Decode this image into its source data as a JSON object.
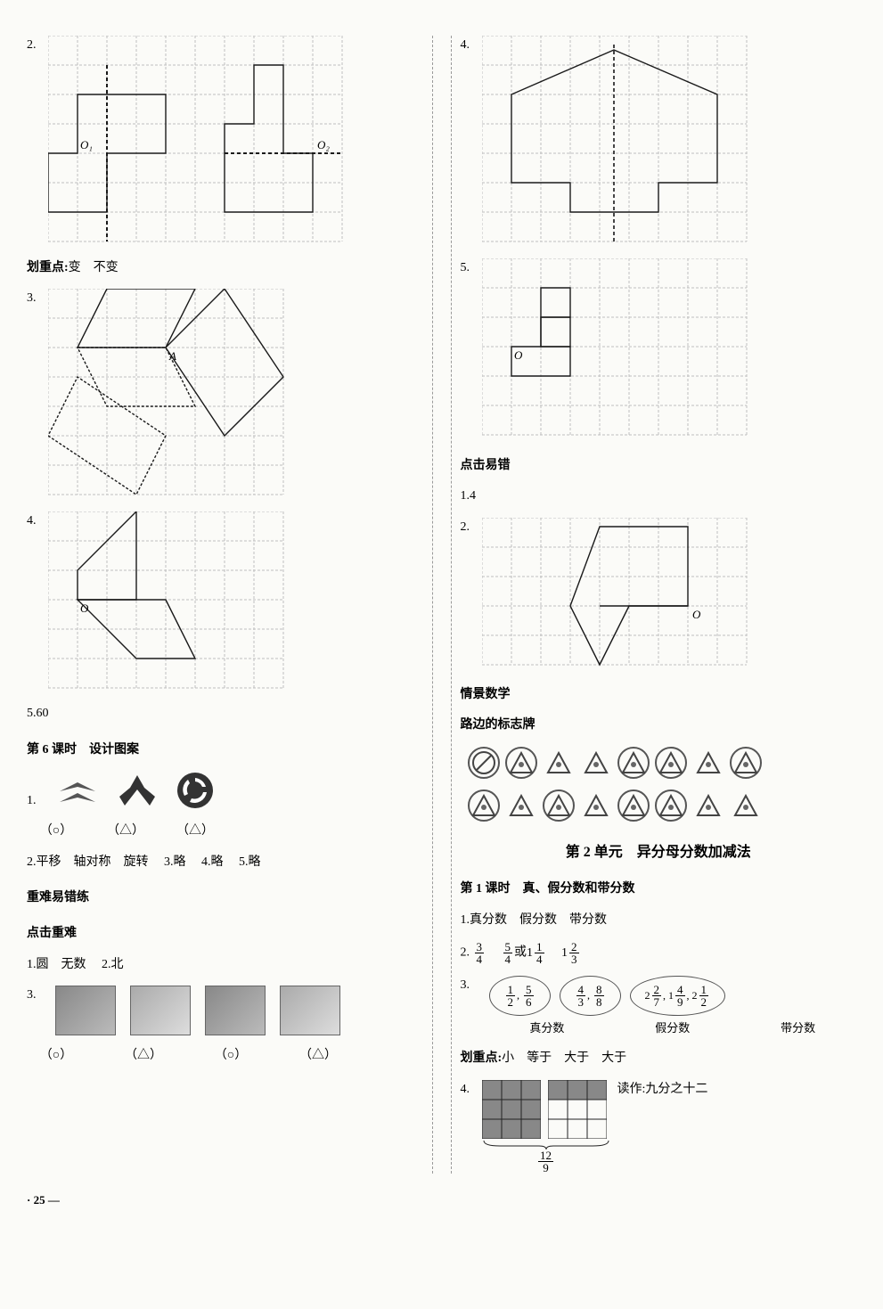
{
  "grid": {
    "stroke": "#bfbfbf",
    "dash": "3 2",
    "shape_stroke": "#1a1a1a",
    "shape_width": 1.4
  },
  "left": {
    "n2": "2.",
    "g2": {
      "w": 10,
      "h": 7,
      "cell": 33,
      "O1": "O₁",
      "O2": "O₂"
    },
    "hzd": "划重点:",
    "hzd_vals": "变　不变",
    "n3": "3.",
    "g3": {
      "w": 8,
      "h": 7,
      "cell": 33,
      "A": "A"
    },
    "n4": "4.",
    "g4": {
      "w": 8,
      "h": 6,
      "cell": 33,
      "O": "O"
    },
    "n5": "5.",
    "a5": "60",
    "h6": "第 6 课时　设计图案",
    "n1b": "1.",
    "ans1": [
      "（○）",
      "（△）",
      "（△）"
    ],
    "n2b": "2.",
    "a2b": "平移　轴对称　旋转",
    "n3b": "3.",
    "a3b": "略",
    "n4b": "4.",
    "a4b": "略",
    "n5b": "5.",
    "a5b": "略",
    "h_hard": "重难易错练",
    "h_click": "点击重难",
    "n1c": "1.",
    "a1c": "圆　无数",
    "n2c": "2.",
    "a2c": "北",
    "n3c": "3.",
    "ans3c": [
      "（○）",
      "（△）",
      "（○）",
      "（△）"
    ]
  },
  "right": {
    "n4": "4.",
    "g4": {
      "w": 9,
      "h": 7,
      "cell": 33
    },
    "n5": "5.",
    "g5": {
      "w": 9,
      "h": 6,
      "cell": 33,
      "O": "O"
    },
    "h_err": "点击易错",
    "n1": "1.",
    "a1": "4",
    "n2": "2.",
    "g2": {
      "w": 9,
      "h": 5,
      "cell": 33,
      "O": "O"
    },
    "h_scene": "情景数学",
    "h_sign": "路边的标志牌",
    "signs_row1_circled": [
      true,
      true,
      false,
      false,
      true,
      true,
      false,
      true
    ],
    "signs_row2_circled": [
      true,
      false,
      true,
      false,
      true,
      true,
      false,
      false
    ],
    "unit2": "第 2 单元　异分母分数加减法",
    "lesson1": "第 1 课时　真、假分数和带分数",
    "n1b": "1.",
    "a1b": "真分数　假分数　带分数",
    "n2b": "2.",
    "f2_1": {
      "n": "3",
      "d": "4"
    },
    "f2_2": {
      "n": "5",
      "d": "4"
    },
    "or": "或",
    "f2_3_w": "1",
    "f2_3": {
      "n": "1",
      "d": "4"
    },
    "f2_4_w": "1",
    "f2_4": {
      "n": "2",
      "d": "3"
    },
    "n3b": "3.",
    "oval1_a": {
      "n": "1",
      "d": "2"
    },
    "oval1_b": {
      "n": "5",
      "d": "6"
    },
    "oval2_a": {
      "n": "4",
      "d": "3"
    },
    "oval2_b": {
      "n": "8",
      "d": "8"
    },
    "oval3_a_w": "2",
    "oval3_a": {
      "n": "2",
      "d": "7"
    },
    "oval3_b_w": "1",
    "oval3_b": {
      "n": "4",
      "d": "9"
    },
    "oval3_c_w": "2",
    "oval3_c": {
      "n": "1",
      "d": "2"
    },
    "lbl_true": "真分数",
    "lbl_false": "假分数",
    "lbl_mixed": "带分数",
    "hzd": "划重点:",
    "hzd_vals": "小　等于　大于　大于",
    "n4b": "4.",
    "read": "读作:",
    "read_val": "九分之十二",
    "final_frac": {
      "n": "12",
      "d": "9"
    }
  },
  "page_num": "25"
}
